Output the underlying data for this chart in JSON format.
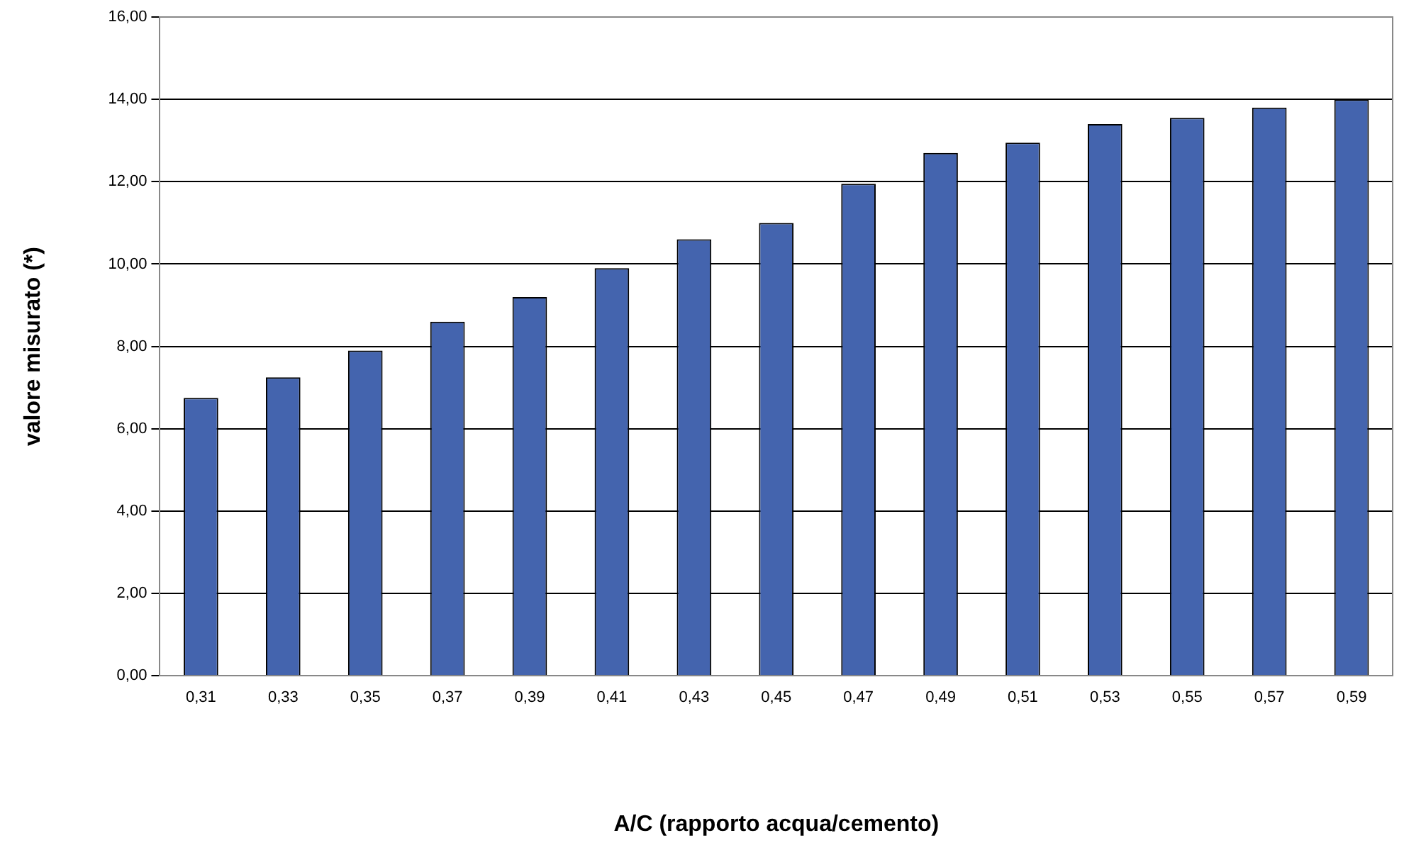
{
  "chart_data": {
    "type": "bar",
    "xlabel": "A/C (rapporto acqua/cemento)",
    "ylabel": "valore misurato (*)",
    "categories": [
      "0,31",
      "0,33",
      "0,35",
      "0,37",
      "0,39",
      "0,41",
      "0,43",
      "0,45",
      "0,47",
      "0,49",
      "0,51",
      "0,53",
      "0,55",
      "0,57",
      "0,59"
    ],
    "values": [
      6.75,
      7.25,
      7.9,
      8.6,
      9.2,
      9.9,
      10.6,
      11.0,
      11.95,
      12.7,
      12.95,
      13.4,
      13.55,
      13.8,
      14.0
    ],
    "color": "#4464ae",
    "ylim": [
      0,
      16
    ],
    "yticks": [
      {
        "value": 0,
        "label": "0,00"
      },
      {
        "value": 2,
        "label": "2,00"
      },
      {
        "value": 4,
        "label": "4,00"
      },
      {
        "value": 6,
        "label": "6,00"
      },
      {
        "value": 8,
        "label": "8,00"
      },
      {
        "value": 10,
        "label": "10,00"
      },
      {
        "value": 12,
        "label": "12,00"
      },
      {
        "value": 14,
        "label": "14,00"
      },
      {
        "value": 16,
        "label": "16,00"
      }
    ],
    "grid": "y",
    "legend": false
  }
}
